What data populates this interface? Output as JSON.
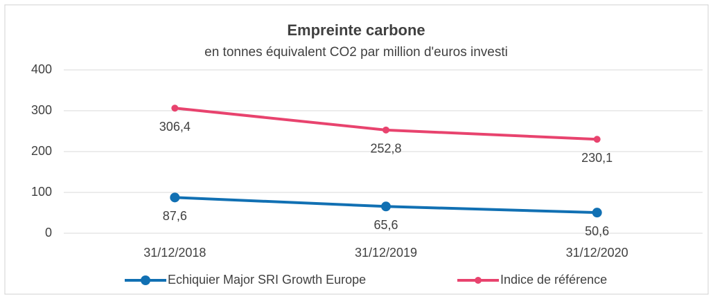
{
  "chart_data": {
    "type": "line",
    "title": "Empreinte carbone",
    "subtitle": "en tonnes équivalent CO2 par million d'euros investi",
    "categories": [
      "31/12/2018",
      "31/12/2019",
      "31/12/2020"
    ],
    "series": [
      {
        "name": "Echiquier Major SRI Growth Europe",
        "color": "#1170b3",
        "values": [
          87.6,
          65.6,
          50.6
        ],
        "value_labels": [
          "87,6",
          "65,6",
          "50,6"
        ]
      },
      {
        "name": "Indice de référence",
        "color": "#e8436e",
        "values": [
          306.4,
          252.8,
          230.1
        ],
        "value_labels": [
          "306,4",
          "252,8",
          "230,1"
        ]
      }
    ],
    "ylim": [
      0,
      400
    ],
    "yticks": [
      0,
      100,
      200,
      300,
      400
    ],
    "grid": true,
    "legend": "bottom"
  }
}
